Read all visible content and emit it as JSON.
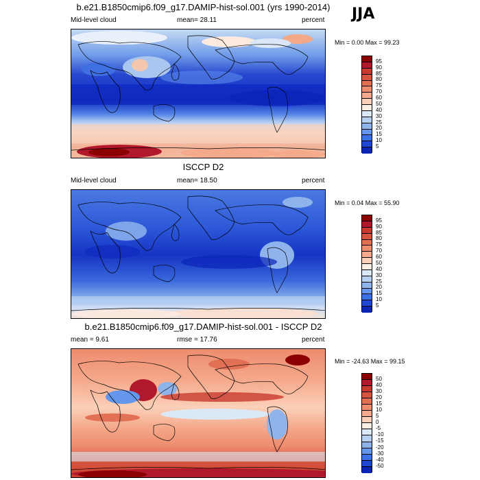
{
  "header": {
    "season": "JJA"
  },
  "panels": [
    {
      "id": "model",
      "title": "b.e21.B1850cmip6.f09_g17.DAMIP-hist-sol.001 (yrs 1990-2014)",
      "left_label": "Mid-level cloud",
      "center_label": "mean=  28.11",
      "right_label": "percent",
      "minmax": "Min =   0.00 Max =  99.23",
      "cb_labels": [
        "95",
        "90",
        "85",
        "80",
        "75",
        "70",
        "60",
        "50",
        "40",
        "30",
        "25",
        "20",
        "15",
        "10",
        "5"
      ],
      "cb_colors": [
        "#8b0000",
        "#b2182b",
        "#c83a2e",
        "#d6553f",
        "#e27055",
        "#ee8c6e",
        "#f5aa8c",
        "#fbd0b9",
        "#fdeee4",
        "#dbe9f6",
        "#b7d0f0",
        "#8fb4ec",
        "#6496ec",
        "#3c70e6",
        "#1f47d6",
        "#0a23b8"
      ]
    },
    {
      "id": "obs",
      "title": "ISCCP D2",
      "left_label": "Mid-level cloud",
      "center_label": "mean=  18.50",
      "right_label": "percent",
      "minmax": "Min =   0.04 Max =  55.90",
      "cb_labels": [
        "95",
        "90",
        "85",
        "80",
        "75",
        "70",
        "60",
        "50",
        "40",
        "30",
        "25",
        "20",
        "15",
        "10",
        "5"
      ],
      "cb_colors": [
        "#8b0000",
        "#b2182b",
        "#c83a2e",
        "#d6553f",
        "#e27055",
        "#ee8c6e",
        "#f5aa8c",
        "#fbd0b9",
        "#fdeee4",
        "#dbe9f6",
        "#b7d0f0",
        "#8fb4ec",
        "#6496ec",
        "#3c70e6",
        "#1f47d6",
        "#0a23b8"
      ]
    },
    {
      "id": "diff",
      "title": "b.e21.B1850cmip6.f09_g17.DAMIP-hist-sol.001 - ISCCP D2",
      "left_label": "mean =   9.61",
      "center_label": "rmse =  17.76",
      "right_label": "percent",
      "minmax": "Min = -24.63 Max =  99.15",
      "cb_labels": [
        "50",
        "40",
        "30",
        "20",
        "15",
        "10",
        "5",
        "0",
        "-5",
        "-10",
        "-15",
        "-20",
        "-30",
        "-40",
        "-50"
      ],
      "cb_colors": [
        "#8b0000",
        "#b2182b",
        "#c83a2e",
        "#d6553f",
        "#e27055",
        "#ee8c6e",
        "#f5aa8c",
        "#fbd0b9",
        "#fdeee4",
        "#dbe9f6",
        "#b7d0f0",
        "#8fb4ec",
        "#6496ec",
        "#3c70e6",
        "#1f47d6",
        "#0a23b8"
      ]
    }
  ],
  "chart_data": [
    {
      "type": "heatmap",
      "title": "b.e21.B1850cmip6.f09_g17.DAMIP-hist-sol.001 (yrs 1990-2014)",
      "variable": "Mid-level cloud",
      "units": "percent",
      "mean": 28.11,
      "min": 0.0,
      "max": 99.23,
      "contour_levels": [
        5,
        10,
        15,
        20,
        25,
        30,
        40,
        50,
        60,
        70,
        75,
        80,
        85,
        90,
        95
      ]
    },
    {
      "type": "heatmap",
      "title": "ISCCP D2",
      "variable": "Mid-level cloud",
      "units": "percent",
      "mean": 18.5,
      "min": 0.04,
      "max": 55.9,
      "contour_levels": [
        5,
        10,
        15,
        20,
        25,
        30,
        40,
        50,
        60,
        70,
        75,
        80,
        85,
        90,
        95
      ]
    },
    {
      "type": "heatmap",
      "title": "b.e21.B1850cmip6.f09_g17.DAMIP-hist-sol.001 - ISCCP D2",
      "units": "percent",
      "mean": 9.61,
      "rmse": 17.76,
      "min": -24.63,
      "max": 99.15,
      "contour_levels": [
        -50,
        -40,
        -30,
        -20,
        -15,
        -10,
        -5,
        0,
        5,
        10,
        15,
        20,
        30,
        40,
        50
      ]
    }
  ]
}
